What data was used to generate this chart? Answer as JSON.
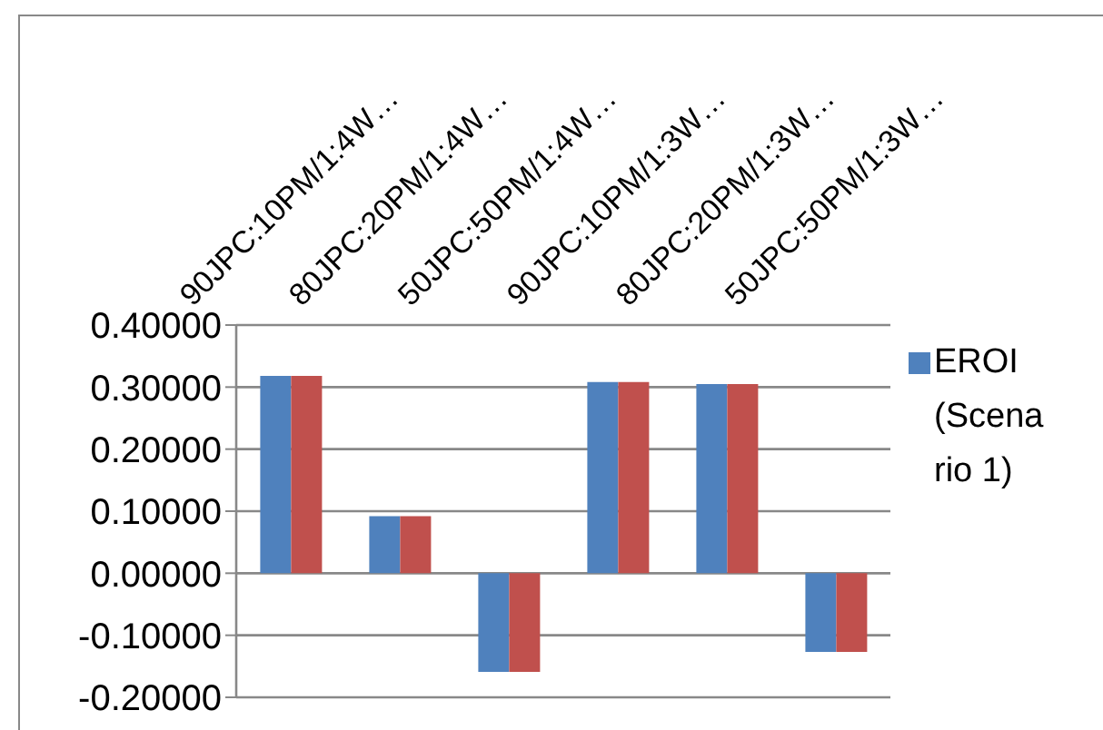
{
  "chart_data": {
    "type": "bar",
    "categories": [
      "90JPC:10PM/1:4W…",
      "80JPC:20PM/1:4W…",
      "50JPC:50PM/1:4W…",
      "90JPC:10PM/1:3W…",
      "80JPC:20PM/1:3W…",
      "50JPC:50PM/1:3W…"
    ],
    "series": [
      {
        "name": "EROI (Scenario 1)",
        "color": "#4f81bd",
        "values": [
          0.318,
          0.092,
          -0.159,
          0.308,
          0.305,
          -0.127
        ]
      },
      {
        "color": "#c0504d",
        "values": [
          0.318,
          0.092,
          -0.159,
          0.308,
          0.305,
          -0.127
        ]
      }
    ],
    "ylim": [
      -0.2,
      0.4
    ],
    "yticks": [
      {
        "value": -0.2,
        "label": "-0.20000"
      },
      {
        "value": -0.1,
        "label": "-0.10000"
      },
      {
        "value": 0,
        "label": "0.00000"
      },
      {
        "value": 0.1,
        "label": "0.10000"
      },
      {
        "value": 0.2,
        "label": "0.20000"
      },
      {
        "value": 0.3,
        "label": "0.30000"
      },
      {
        "value": 0.4,
        "label": "0.40000"
      }
    ],
    "grid": "y",
    "legend": "top right"
  }
}
